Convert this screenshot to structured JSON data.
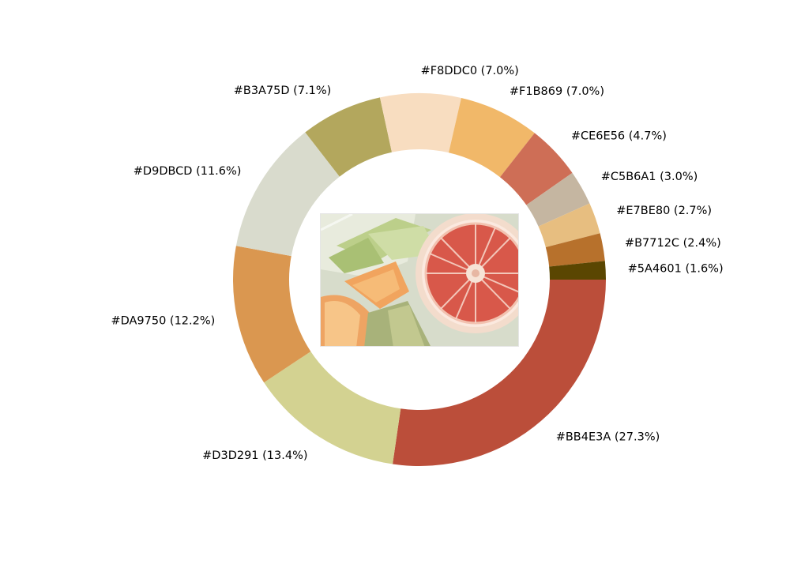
{
  "chart_data": {
    "type": "pie",
    "variant": "donut",
    "start_angle_deg": 0,
    "direction": "clockwise",
    "legend": "none",
    "center_image": {
      "name": "fruit-photo",
      "content": "sliced honeydew and cantaloupe melon with a halved pink grapefruit"
    },
    "slices": [
      {
        "label": "#BB4E3A (27.3%)",
        "color": "#BB4E3A",
        "value": 27.3
      },
      {
        "label": "#D3D291 (13.4%)",
        "color": "#D3D291",
        "value": 13.4
      },
      {
        "label": "#DA9750 (12.2%)",
        "color": "#DA9750",
        "value": 12.2
      },
      {
        "label": "#D9DBCD (11.6%)",
        "color": "#D9DBCD",
        "value": 11.6
      },
      {
        "label": "#B3A75D (7.1%)",
        "color": "#B3A75D",
        "value": 7.1
      },
      {
        "label": "#F8DDC0 (7.0%)",
        "color": "#F8DDC0",
        "value": 7.0
      },
      {
        "label": "#F1B869 (7.0%)",
        "color": "#F1B869",
        "value": 7.0
      },
      {
        "label": "#CE6E56 (4.7%)",
        "color": "#CE6E56",
        "value": 4.7
      },
      {
        "label": "#C5B6A1 (3.0%)",
        "color": "#C5B6A1",
        "value": 3.0
      },
      {
        "label": "#E7BE80 (2.7%)",
        "color": "#E7BE80",
        "value": 2.7
      },
      {
        "label": "#B7712C (2.4%)",
        "color": "#B7712C",
        "value": 2.4
      },
      {
        "label": "#5A4601 (1.6%)",
        "color": "#5A4601",
        "value": 1.6
      }
    ]
  }
}
